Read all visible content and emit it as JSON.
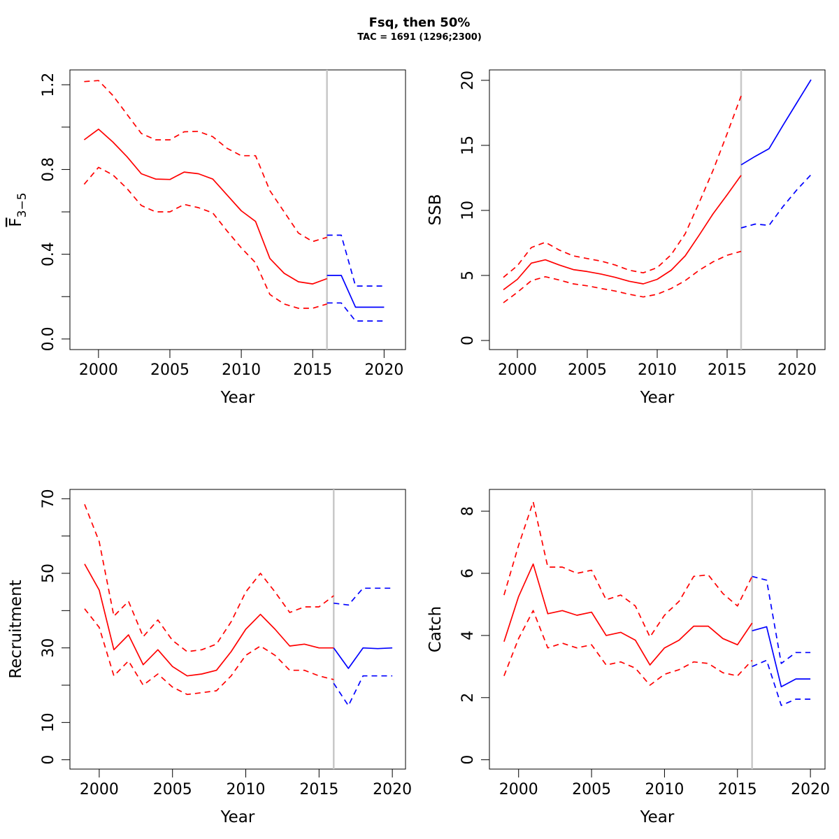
{
  "title": "Fsq, then 50%",
  "subtitle": "TAC = 1691 (1296;2300)",
  "colors": {
    "historic": "#ff0000",
    "forecast": "#0000ff",
    "divider": "#c8c8c8"
  },
  "chart_data": [
    {
      "type": "line",
      "xlabel": "Year",
      "ylabel_base": "F",
      "ylabel_sub": "3−5",
      "xlim": [
        1998,
        2021.5
      ],
      "ylim": [
        -0.05,
        1.27
      ],
      "xticks": [
        2000,
        2005,
        2010,
        2015,
        2020
      ],
      "xtick_labels": [
        "2000",
        "2005",
        "2010",
        "2015",
        "2020"
      ],
      "yticks": [
        0,
        0.2,
        0.4,
        0.6,
        0.8,
        1.0,
        1.2
      ],
      "ytick_labels": [
        "0.0",
        "",
        "0.4",
        "",
        "0.8",
        "",
        "1.2"
      ],
      "divider_x": 2016,
      "series": [
        {
          "role": "historic",
          "style": "solid",
          "x": [
            1999,
            2000,
            2001,
            2002,
            2003,
            2004,
            2005,
            2006,
            2007,
            2008,
            2009,
            2010,
            2011,
            2012,
            2013,
            2014,
            2015,
            2016
          ],
          "y": [
            0.94,
            0.99,
            0.93,
            0.86,
            0.78,
            0.755,
            0.753,
            0.788,
            0.78,
            0.755,
            0.68,
            0.605,
            0.555,
            0.38,
            0.31,
            0.27,
            0.26,
            0.285
          ]
        },
        {
          "role": "historic",
          "style": "dashed",
          "x": [
            1999,
            2000,
            2001,
            2002,
            2003,
            2004,
            2005,
            2006,
            2007,
            2008,
            2009,
            2010,
            2011,
            2012,
            2013,
            2014,
            2015,
            2016
          ],
          "y": [
            1.215,
            1.22,
            1.15,
            1.06,
            0.97,
            0.94,
            0.94,
            0.978,
            0.98,
            0.955,
            0.9,
            0.865,
            0.865,
            0.7,
            0.6,
            0.5,
            0.46,
            0.48
          ]
        },
        {
          "role": "historic",
          "style": "dashed",
          "x": [
            1999,
            2000,
            2001,
            2002,
            2003,
            2004,
            2005,
            2006,
            2007,
            2008,
            2009,
            2010,
            2011,
            2012,
            2013,
            2014,
            2015,
            2016
          ],
          "y": [
            0.73,
            0.81,
            0.775,
            0.71,
            0.63,
            0.6,
            0.6,
            0.635,
            0.62,
            0.595,
            0.51,
            0.43,
            0.36,
            0.21,
            0.165,
            0.145,
            0.145,
            0.165
          ]
        },
        {
          "role": "forecast",
          "style": "solid",
          "x": [
            2016,
            2017,
            2018,
            2019,
            2020
          ],
          "y": [
            0.3,
            0.3,
            0.15,
            0.15,
            0.15
          ]
        },
        {
          "role": "forecast",
          "style": "dashed",
          "x": [
            2016,
            2017,
            2018,
            2019,
            2020
          ],
          "y": [
            0.49,
            0.49,
            0.25,
            0.25,
            0.25
          ]
        },
        {
          "role": "forecast",
          "style": "dashed",
          "x": [
            2016,
            2017,
            2018,
            2019,
            2020
          ],
          "y": [
            0.17,
            0.17,
            0.085,
            0.085,
            0.085
          ]
        }
      ]
    },
    {
      "type": "line",
      "xlabel": "Year",
      "ylabel": "SSB",
      "xlim": [
        1998,
        2022
      ],
      "ylim": [
        -0.7,
        20.8
      ],
      "xticks": [
        2000,
        2005,
        2010,
        2015,
        2020
      ],
      "xtick_labels": [
        "2000",
        "2005",
        "2010",
        "2015",
        "2020"
      ],
      "yticks": [
        0,
        5,
        10,
        15,
        20
      ],
      "ytick_labels": [
        "0",
        "5",
        "10",
        "15",
        "20"
      ],
      "divider_x": 2016,
      "series": [
        {
          "role": "historic",
          "style": "solid",
          "x": [
            1999,
            2000,
            2001,
            2002,
            2003,
            2004,
            2005,
            2006,
            2007,
            2008,
            2009,
            2010,
            2011,
            2012,
            2013,
            2014,
            2015,
            2016
          ],
          "y": [
            3.9,
            4.7,
            5.95,
            6.2,
            5.8,
            5.45,
            5.3,
            5.1,
            4.85,
            4.55,
            4.35,
            4.7,
            5.4,
            6.5,
            8.1,
            9.75,
            11.2,
            12.7
          ]
        },
        {
          "role": "historic",
          "style": "dashed",
          "x": [
            1999,
            2000,
            2001,
            2002,
            2003,
            2004,
            2005,
            2006,
            2007,
            2008,
            2009,
            2010,
            2011,
            2012,
            2013,
            2014,
            2015,
            2016
          ],
          "y": [
            4.85,
            5.75,
            7.15,
            7.55,
            6.95,
            6.5,
            6.3,
            6.1,
            5.8,
            5.4,
            5.2,
            5.6,
            6.6,
            8.2,
            10.6,
            13.1,
            15.9,
            18.8
          ]
        },
        {
          "role": "historic",
          "style": "dashed",
          "x": [
            1999,
            2000,
            2001,
            2002,
            2003,
            2004,
            2005,
            2006,
            2007,
            2008,
            2009,
            2010,
            2011,
            2012,
            2013,
            2014,
            2015,
            2016
          ],
          "y": [
            2.9,
            3.7,
            4.6,
            4.9,
            4.65,
            4.35,
            4.2,
            4.0,
            3.8,
            3.55,
            3.35,
            3.55,
            4.0,
            4.6,
            5.4,
            6.05,
            6.55,
            6.85
          ]
        },
        {
          "role": "forecast",
          "style": "solid",
          "x": [
            2016,
            2017,
            2018,
            2019,
            2020,
            2021
          ],
          "y": [
            13.5,
            14.15,
            14.75,
            16.55,
            18.3,
            20.05
          ]
        },
        {
          "role": "forecast",
          "style": "dashed",
          "x": [
            2016,
            2017,
            2018,
            2019,
            2020,
            2021
          ],
          "y": [
            8.65,
            8.95,
            8.85,
            10.3,
            11.6,
            12.75
          ]
        }
      ]
    },
    {
      "type": "line",
      "xlabel": "Year",
      "ylabel": "Recruitment",
      "xlim": [
        1998,
        2020.9
      ],
      "ylim": [
        -2.5,
        72.5
      ],
      "xticks": [
        2000,
        2005,
        2010,
        2015,
        2020
      ],
      "xtick_labels": [
        "2000",
        "2005",
        "2010",
        "2015",
        "2020"
      ],
      "yticks": [
        0,
        10,
        20,
        30,
        40,
        50,
        60,
        70
      ],
      "ytick_labels": [
        "0",
        "10",
        "",
        "30",
        "",
        "50",
        "",
        "70"
      ],
      "divider_x": 2016,
      "series": [
        {
          "role": "historic",
          "style": "solid",
          "x": [
            1999,
            2000,
            2001,
            2002,
            2003,
            2004,
            2005,
            2006,
            2007,
            2008,
            2009,
            2010,
            2011,
            2012,
            2013,
            2014,
            2015,
            2016
          ],
          "y": [
            52.5,
            45.5,
            29.5,
            33.5,
            25.5,
            29.5,
            25,
            22.5,
            23,
            24,
            29,
            35,
            39,
            35,
            30.5,
            31,
            30,
            30
          ]
        },
        {
          "role": "historic",
          "style": "dashed",
          "x": [
            1999,
            2000,
            2001,
            2002,
            2003,
            2004,
            2005,
            2006,
            2007,
            2008,
            2009,
            2010,
            2011,
            2012,
            2013,
            2014,
            2015,
            2016
          ],
          "y": [
            68.5,
            58.5,
            38.5,
            42.5,
            33,
            37.5,
            32,
            29,
            29.5,
            31,
            37,
            45,
            50,
            45,
            39.5,
            41,
            41,
            44
          ]
        },
        {
          "role": "historic",
          "style": "dashed",
          "x": [
            1999,
            2000,
            2001,
            2002,
            2003,
            2004,
            2005,
            2006,
            2007,
            2008,
            2009,
            2010,
            2011,
            2012,
            2013,
            2014,
            2015,
            2016
          ],
          "y": [
            40.5,
            35.5,
            22.5,
            26.5,
            20,
            23,
            19.5,
            17.5,
            18,
            18.5,
            22.5,
            28,
            30.5,
            28,
            24,
            24,
            22.5,
            21.5
          ]
        },
        {
          "role": "forecast",
          "style": "solid",
          "x": [
            2016,
            2017,
            2018,
            2019,
            2020
          ],
          "y": [
            30,
            24.5,
            30,
            29.8,
            30
          ]
        },
        {
          "role": "forecast",
          "style": "dashed",
          "x": [
            2016,
            2017,
            2018,
            2019,
            2020
          ],
          "y": [
            42,
            41.5,
            46,
            46,
            46
          ]
        },
        {
          "role": "forecast",
          "style": "dashed",
          "x": [
            2016,
            2017,
            2018,
            2019,
            2020
          ],
          "y": [
            20.5,
            14.5,
            22.5,
            22.5,
            22.5
          ]
        }
      ]
    },
    {
      "type": "line",
      "xlabel": "Year",
      "ylabel": "Catch",
      "xlim": [
        1998,
        2021
      ],
      "ylim": [
        -0.3,
        8.7
      ],
      "xticks": [
        2000,
        2005,
        2010,
        2015,
        2020
      ],
      "xtick_labels": [
        "2000",
        "2005",
        "2010",
        "2015",
        "2020"
      ],
      "yticks": [
        0,
        2,
        4,
        6,
        8
      ],
      "ytick_labels": [
        "0",
        "2",
        "4",
        "6",
        "8"
      ],
      "divider_x": 2016,
      "series": [
        {
          "role": "historic",
          "style": "solid",
          "x": [
            1999,
            2000,
            2001,
            2002,
            2003,
            2004,
            2005,
            2006,
            2007,
            2008,
            2009,
            2010,
            2011,
            2012,
            2013,
            2014,
            2015,
            2016
          ],
          "y": [
            3.8,
            5.25,
            6.3,
            4.7,
            4.8,
            4.65,
            4.75,
            4.0,
            4.1,
            3.85,
            3.05,
            3.6,
            3.85,
            4.3,
            4.3,
            3.9,
            3.7,
            4.4
          ]
        },
        {
          "role": "historic",
          "style": "dashed",
          "x": [
            1999,
            2000,
            2001,
            2002,
            2003,
            2004,
            2005,
            2006,
            2007,
            2008,
            2009,
            2010,
            2011,
            2012,
            2013,
            2014,
            2015,
            2016
          ],
          "y": [
            5.3,
            6.9,
            8.3,
            6.2,
            6.2,
            6.0,
            6.1,
            5.15,
            5.3,
            4.95,
            3.95,
            4.65,
            5.1,
            5.9,
            5.95,
            5.35,
            4.95,
            5.9
          ]
        },
        {
          "role": "historic",
          "style": "dashed",
          "x": [
            1999,
            2000,
            2001,
            2002,
            2003,
            2004,
            2005,
            2006,
            2007,
            2008,
            2009,
            2010,
            2011,
            2012,
            2013,
            2014,
            2015,
            2016
          ],
          "y": [
            2.7,
            3.9,
            4.8,
            3.6,
            3.75,
            3.6,
            3.7,
            3.05,
            3.15,
            2.95,
            2.4,
            2.75,
            2.9,
            3.15,
            3.1,
            2.8,
            2.7,
            3.2
          ]
        },
        {
          "role": "forecast",
          "style": "solid",
          "x": [
            2016,
            2017,
            2018,
            2019,
            2020
          ],
          "y": [
            4.15,
            4.28,
            2.35,
            2.6,
            2.6
          ]
        },
        {
          "role": "forecast",
          "style": "dashed",
          "x": [
            2016,
            2017,
            2018,
            2019,
            2020
          ],
          "y": [
            5.9,
            5.78,
            3.1,
            3.45,
            3.45
          ]
        },
        {
          "role": "forecast",
          "style": "dashed",
          "x": [
            2016,
            2017,
            2018,
            2019,
            2020
          ],
          "y": [
            3.0,
            3.2,
            1.75,
            1.95,
            1.95
          ]
        }
      ]
    }
  ]
}
